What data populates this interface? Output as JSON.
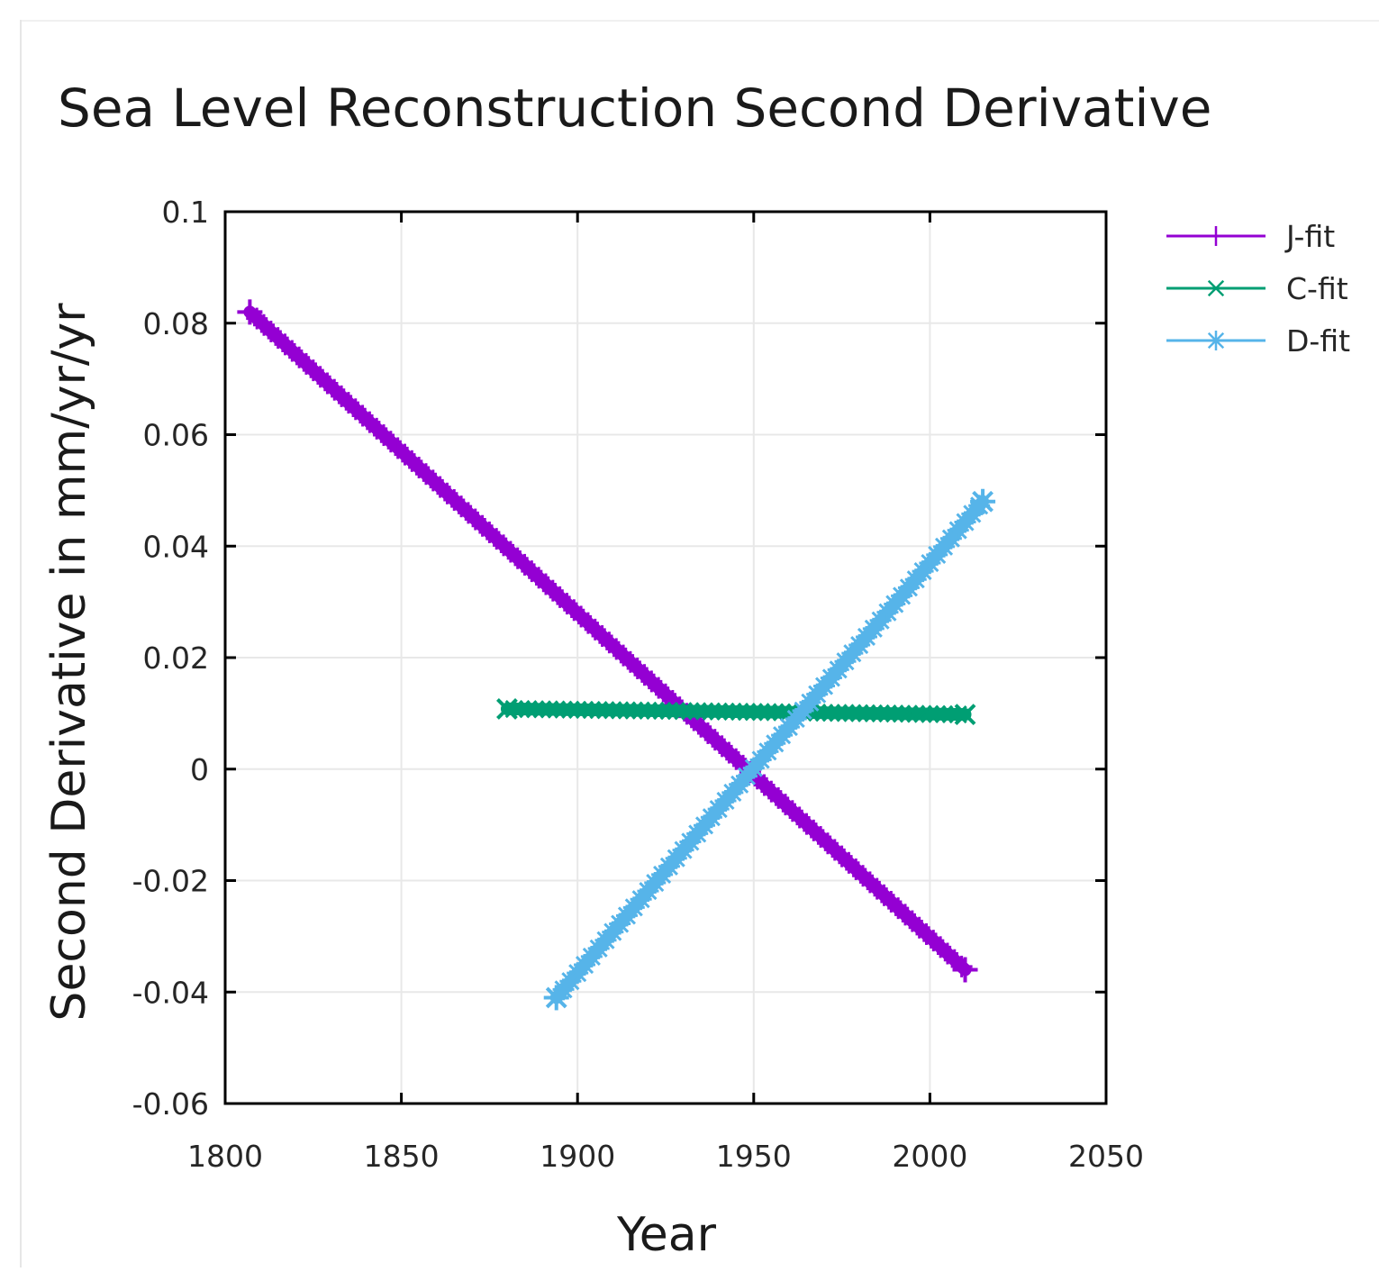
{
  "chart_data": {
    "type": "line",
    "title": "Sea Level Reconstruction Second Derivative",
    "xlabel": "Year",
    "ylabel": "Second Derivative in mm/yr/yr",
    "xlim": [
      1800,
      2050
    ],
    "ylim": [
      -0.06,
      0.1
    ],
    "xticks": [
      1800,
      1850,
      1900,
      1950,
      2000,
      2050
    ],
    "xtick_labels": [
      "1800",
      "1850",
      "1900",
      "1950",
      "2000",
      "2050"
    ],
    "yticks": [
      0.1,
      0.08,
      0.06,
      0.04,
      0.02,
      0,
      -0.02,
      -0.04,
      -0.06
    ],
    "ytick_labels": [
      "0.1",
      "0.08",
      "0.06",
      "0.04",
      "0.02",
      "0",
      "-0.02",
      "-0.04",
      "-0.06"
    ],
    "grid": true,
    "legend_position": "top-right outside",
    "series": [
      {
        "name": "J-fit",
        "marker": "plus",
        "color": "#9400d3",
        "x": [
          1807,
          2010
        ],
        "y": [
          0.082,
          -0.036
        ]
      },
      {
        "name": "C-fit",
        "marker": "cross",
        "color": "#009e73",
        "x": [
          1880,
          2010
        ],
        "y": [
          0.0108,
          0.0098
        ]
      },
      {
        "name": "D-fit",
        "marker": "star",
        "color": "#56b4e9",
        "x": [
          1894,
          2015
        ],
        "y": [
          -0.041,
          0.048
        ]
      }
    ]
  }
}
